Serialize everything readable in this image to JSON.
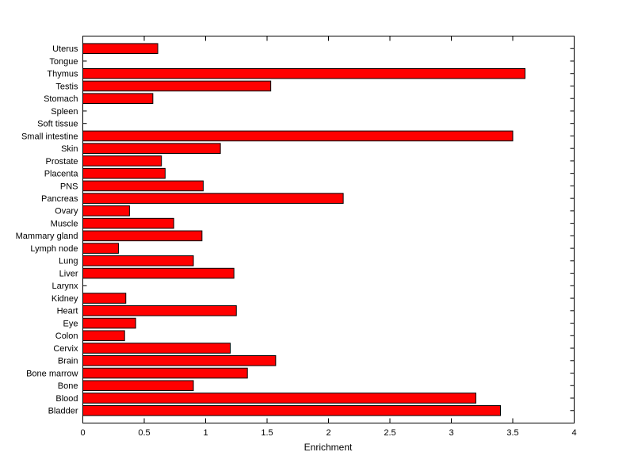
{
  "chart_data": {
    "type": "bar",
    "orientation": "horizontal",
    "title": "",
    "xlabel": "Enrichment",
    "ylabel": "",
    "xlim": [
      0,
      4
    ],
    "xticks": [
      0,
      0.5,
      1,
      1.5,
      2,
      2.5,
      3,
      3.5,
      4
    ],
    "grid": false,
    "legend": "none",
    "bar_color": "#ff0000",
    "bar_edge_color": "#000000",
    "axis_color": "#000000",
    "background_color": "#ffffff",
    "categories": [
      "Uterus",
      "Tongue",
      "Thymus",
      "Testis",
      "Stomach",
      "Spleen",
      "Soft tissue",
      "Small intestine",
      "Skin",
      "Prostate",
      "Placenta",
      "PNS",
      "Pancreas",
      "Ovary",
      "Muscle",
      "Mammary gland",
      "Lymph node",
      "Lung",
      "Liver",
      "Larynx",
      "Kidney",
      "Heart",
      "Eye",
      "Colon",
      "Cervix",
      "Brain",
      "Bone marrow",
      "Bone",
      "Blood",
      "Bladder"
    ],
    "values": [
      0.61,
      0,
      3.6,
      1.53,
      0.57,
      0,
      0,
      3.5,
      1.12,
      0.64,
      0.67,
      0.98,
      2.12,
      0.38,
      0.74,
      0.97,
      0.29,
      0.9,
      1.23,
      0,
      0.35,
      1.25,
      0.43,
      0.34,
      1.2,
      1.57,
      1.34,
      0.9,
      3.2,
      3.4
    ]
  }
}
